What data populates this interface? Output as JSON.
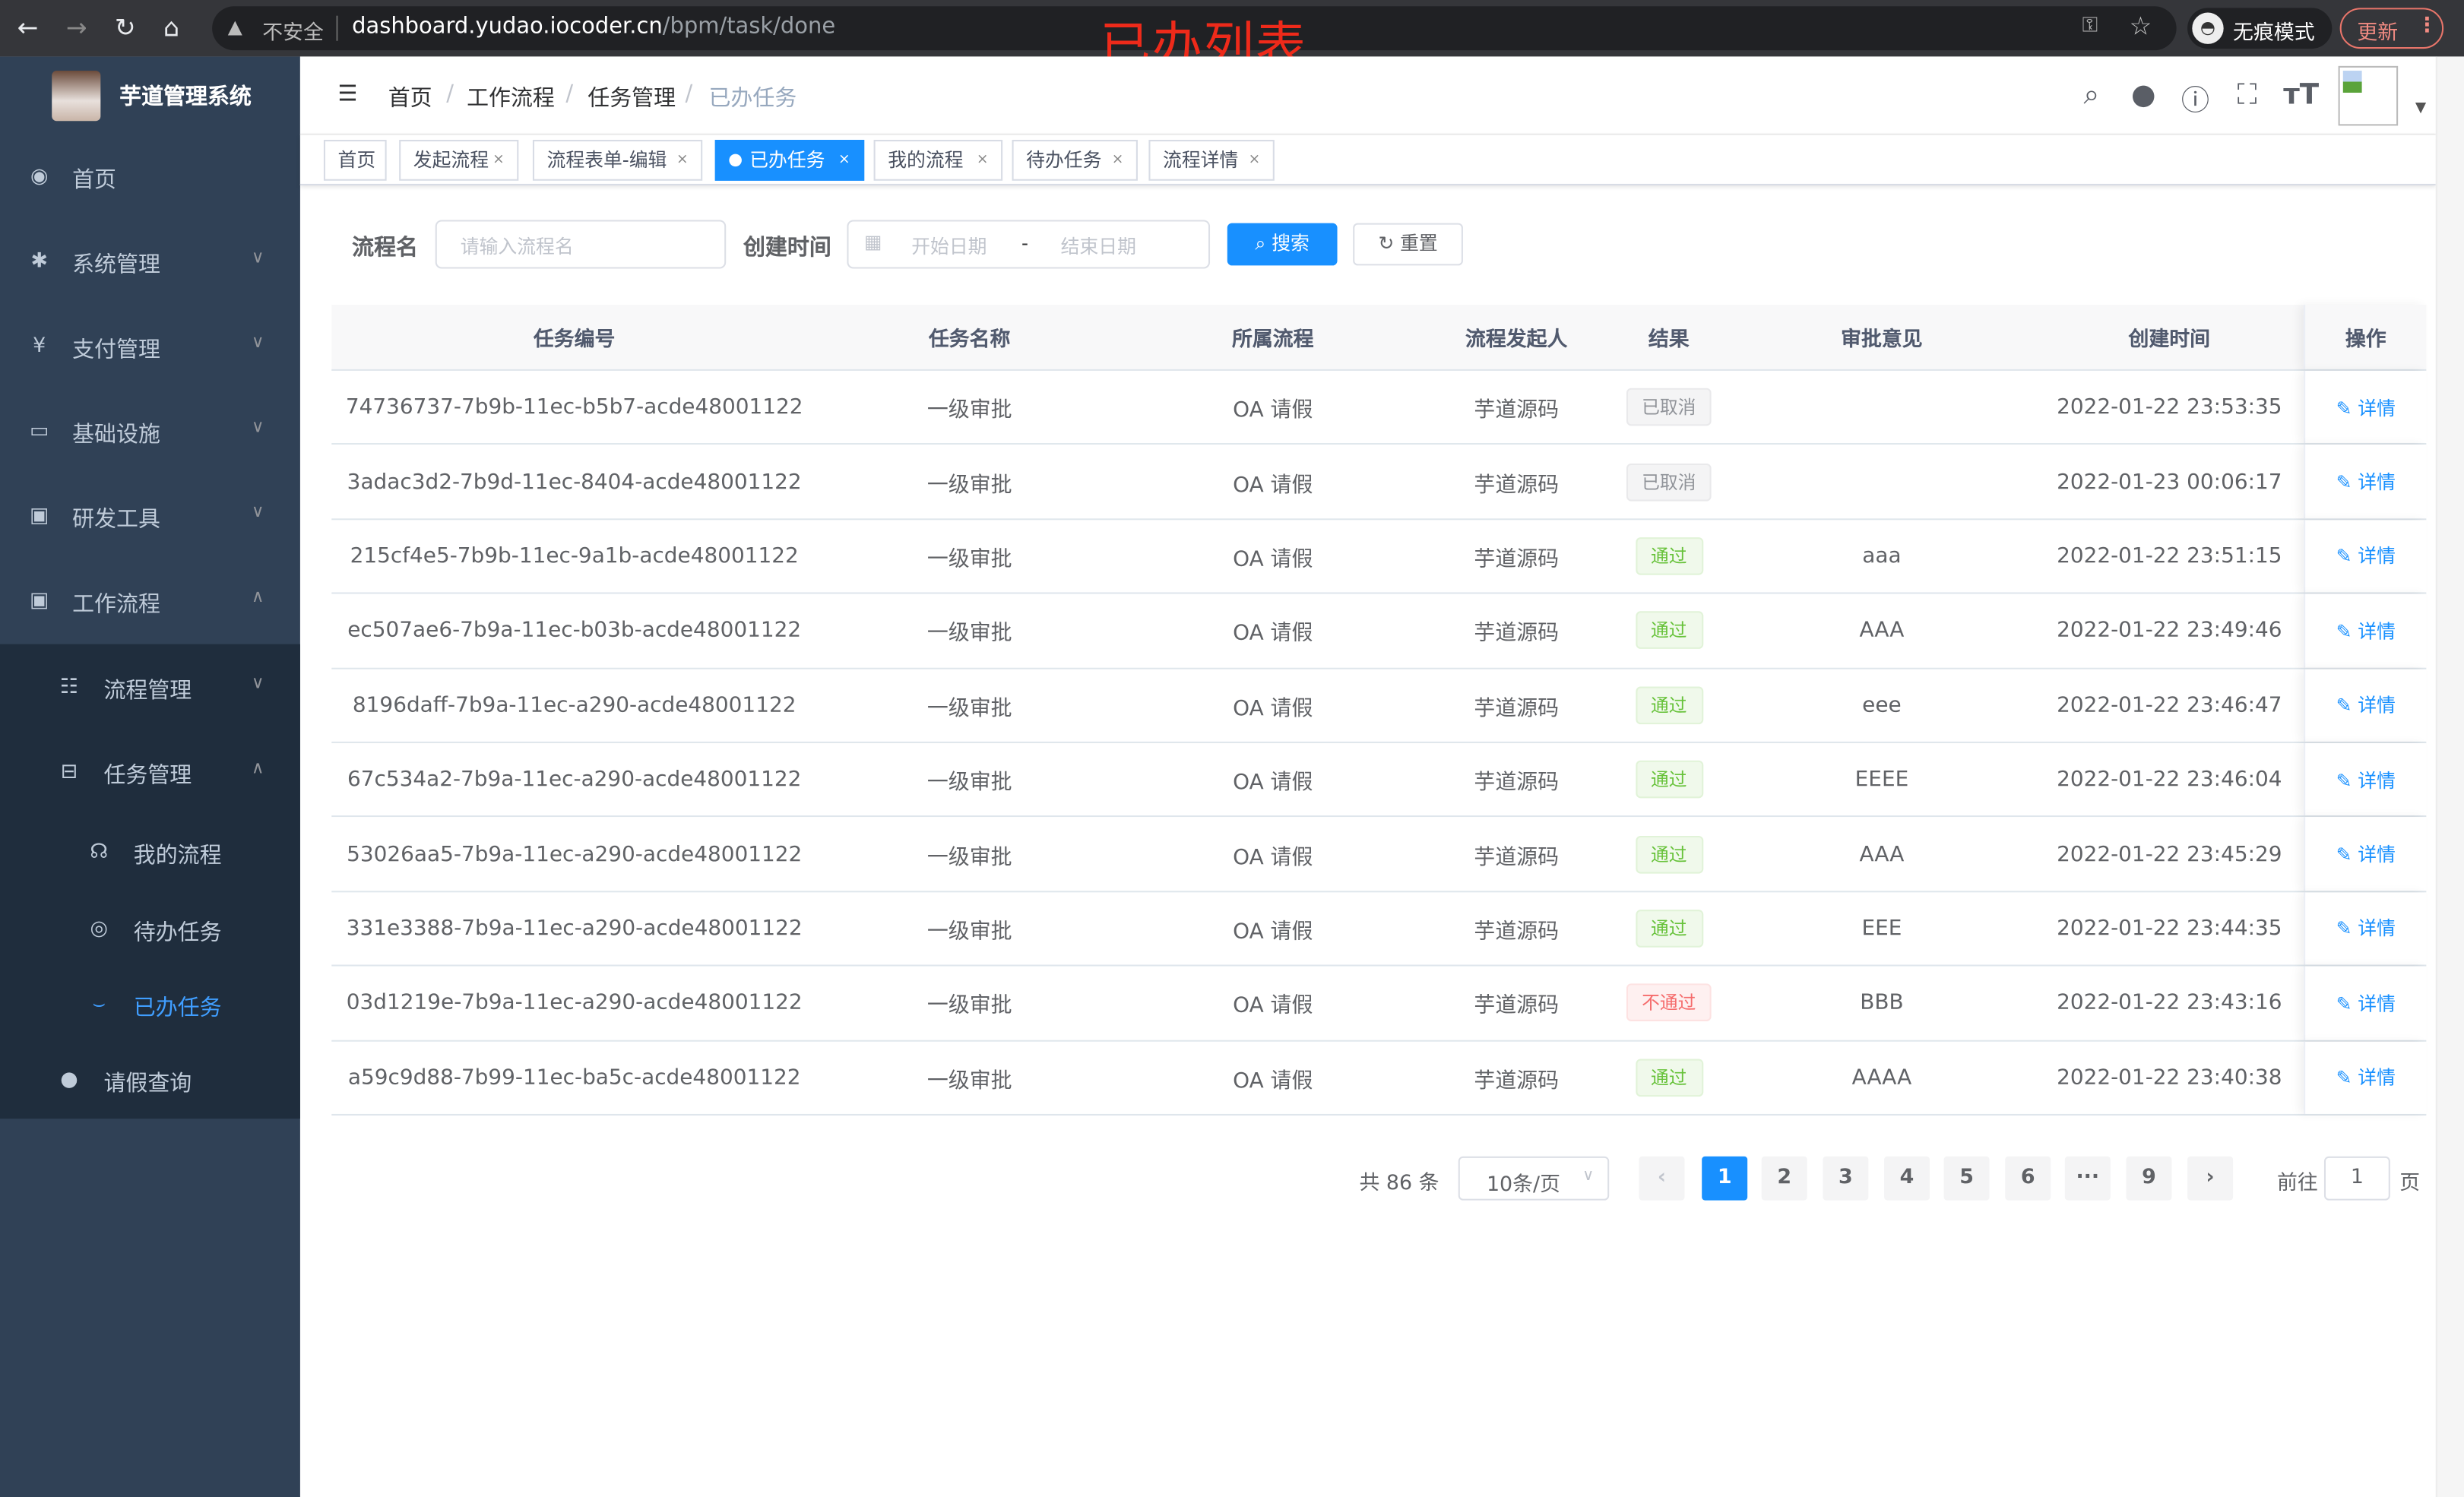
{
  "browser": {
    "insecure_label": "不安全",
    "url_host": "dashboard.yudao.iocoder.cn",
    "url_path": "/bpm/task/done",
    "incognito_label": "无痕模式",
    "update_label": "更新"
  },
  "overlay_title": "已办列表",
  "sidebar": {
    "title": "芋道管理系统",
    "items": [
      {
        "label": "首页",
        "icon": "dashboard-icon"
      },
      {
        "label": "系统管理",
        "icon": "gear-icon"
      },
      {
        "label": "支付管理",
        "icon": "yen-icon"
      },
      {
        "label": "基础设施",
        "icon": "monitor-icon"
      },
      {
        "label": "研发工具",
        "icon": "toolbox-icon"
      },
      {
        "label": "工作流程",
        "icon": "toolbox-icon"
      },
      {
        "label": "流程管理",
        "icon": "list-icon"
      },
      {
        "label": "任务管理",
        "icon": "tree-icon"
      },
      {
        "label": "我的流程",
        "icon": "chat-icon"
      },
      {
        "label": "待办任务",
        "icon": "eye-icon"
      },
      {
        "label": "已办任务",
        "icon": "eye-closed-icon",
        "active": true
      },
      {
        "label": "请假查询",
        "icon": "user-icon"
      }
    ]
  },
  "breadcrumb": [
    "首页",
    "工作流程",
    "任务管理",
    "已办任务"
  ],
  "tags": [
    {
      "label": "首页"
    },
    {
      "label": "发起流程"
    },
    {
      "label": "流程表单-编辑"
    },
    {
      "label": "已办任务",
      "active": true
    },
    {
      "label": "我的流程"
    },
    {
      "label": "待办任务"
    },
    {
      "label": "流程详情"
    }
  ],
  "search": {
    "name_label": "流程名",
    "name_placeholder": "请输入流程名",
    "time_label": "创建时间",
    "start_placeholder": "开始日期",
    "range_sep": "-",
    "end_placeholder": "结束日期",
    "search_label": "搜索",
    "reset_label": "重置"
  },
  "table": {
    "columns": [
      "任务编号",
      "任务名称",
      "所属流程",
      "流程发起人",
      "结果",
      "审批意见",
      "创建时间",
      "操作"
    ],
    "rows": [
      [
        "74736737-7b9b-11ec-b5b7-acde48001122",
        "一级审批",
        "OA 请假",
        "芋道源码",
        "已取消",
        "",
        "2022-01-22 23:53:35",
        "详情"
      ],
      [
        "3adac3d2-7b9d-11ec-8404-acde48001122",
        "一级审批",
        "OA 请假",
        "芋道源码",
        "已取消",
        "",
        "2022-01-23 00:06:17",
        "详情"
      ],
      [
        "215cf4e5-7b9b-11ec-9a1b-acde48001122",
        "一级审批",
        "OA 请假",
        "芋道源码",
        "通过",
        "aaa",
        "2022-01-22 23:51:15",
        "详情"
      ],
      [
        "ec507ae6-7b9a-11ec-b03b-acde48001122",
        "一级审批",
        "OA 请假",
        "芋道源码",
        "通过",
        "AAA",
        "2022-01-22 23:49:46",
        "详情"
      ],
      [
        "8196daff-7b9a-11ec-a290-acde48001122",
        "一级审批",
        "OA 请假",
        "芋道源码",
        "通过",
        "eee",
        "2022-01-22 23:46:47",
        "详情"
      ],
      [
        "67c534a2-7b9a-11ec-a290-acde48001122",
        "一级审批",
        "OA 请假",
        "芋道源码",
        "通过",
        "EEEE",
        "2022-01-22 23:46:04",
        "详情"
      ],
      [
        "53026aa5-7b9a-11ec-a290-acde48001122",
        "一级审批",
        "OA 请假",
        "芋道源码",
        "通过",
        "AAA",
        "2022-01-22 23:45:29",
        "详情"
      ],
      [
        "331e3388-7b9a-11ec-a290-acde48001122",
        "一级审批",
        "OA 请假",
        "芋道源码",
        "通过",
        "EEE",
        "2022-01-22 23:44:35",
        "详情"
      ],
      [
        "03d1219e-7b9a-11ec-a290-acde48001122",
        "一级审批",
        "OA 请假",
        "芋道源码",
        "不通过",
        "BBB",
        "2022-01-22 23:43:16",
        "详情"
      ],
      [
        "a59c9d88-7b99-11ec-ba5c-acde48001122",
        "一级审批",
        "OA 请假",
        "芋道源码",
        "通过",
        "AAAA",
        "2022-01-22 23:40:38",
        "详情"
      ]
    ],
    "result_styles": {
      "已取消": "info",
      "通过": "success",
      "不通过": "danger"
    }
  },
  "pagination": {
    "total_text": "共 86 条",
    "page_size": "10条/页",
    "pages": [
      "1",
      "2",
      "3",
      "4",
      "5",
      "6",
      "···",
      "9"
    ],
    "current_page": "1",
    "goto_label": "前往",
    "goto_value": "1",
    "page_unit": "页"
  },
  "colors": {
    "primary": "#1890ff",
    "sidebar": "#304156",
    "success": "#67c23a",
    "danger": "#f56c6c",
    "info": "#909399"
  }
}
